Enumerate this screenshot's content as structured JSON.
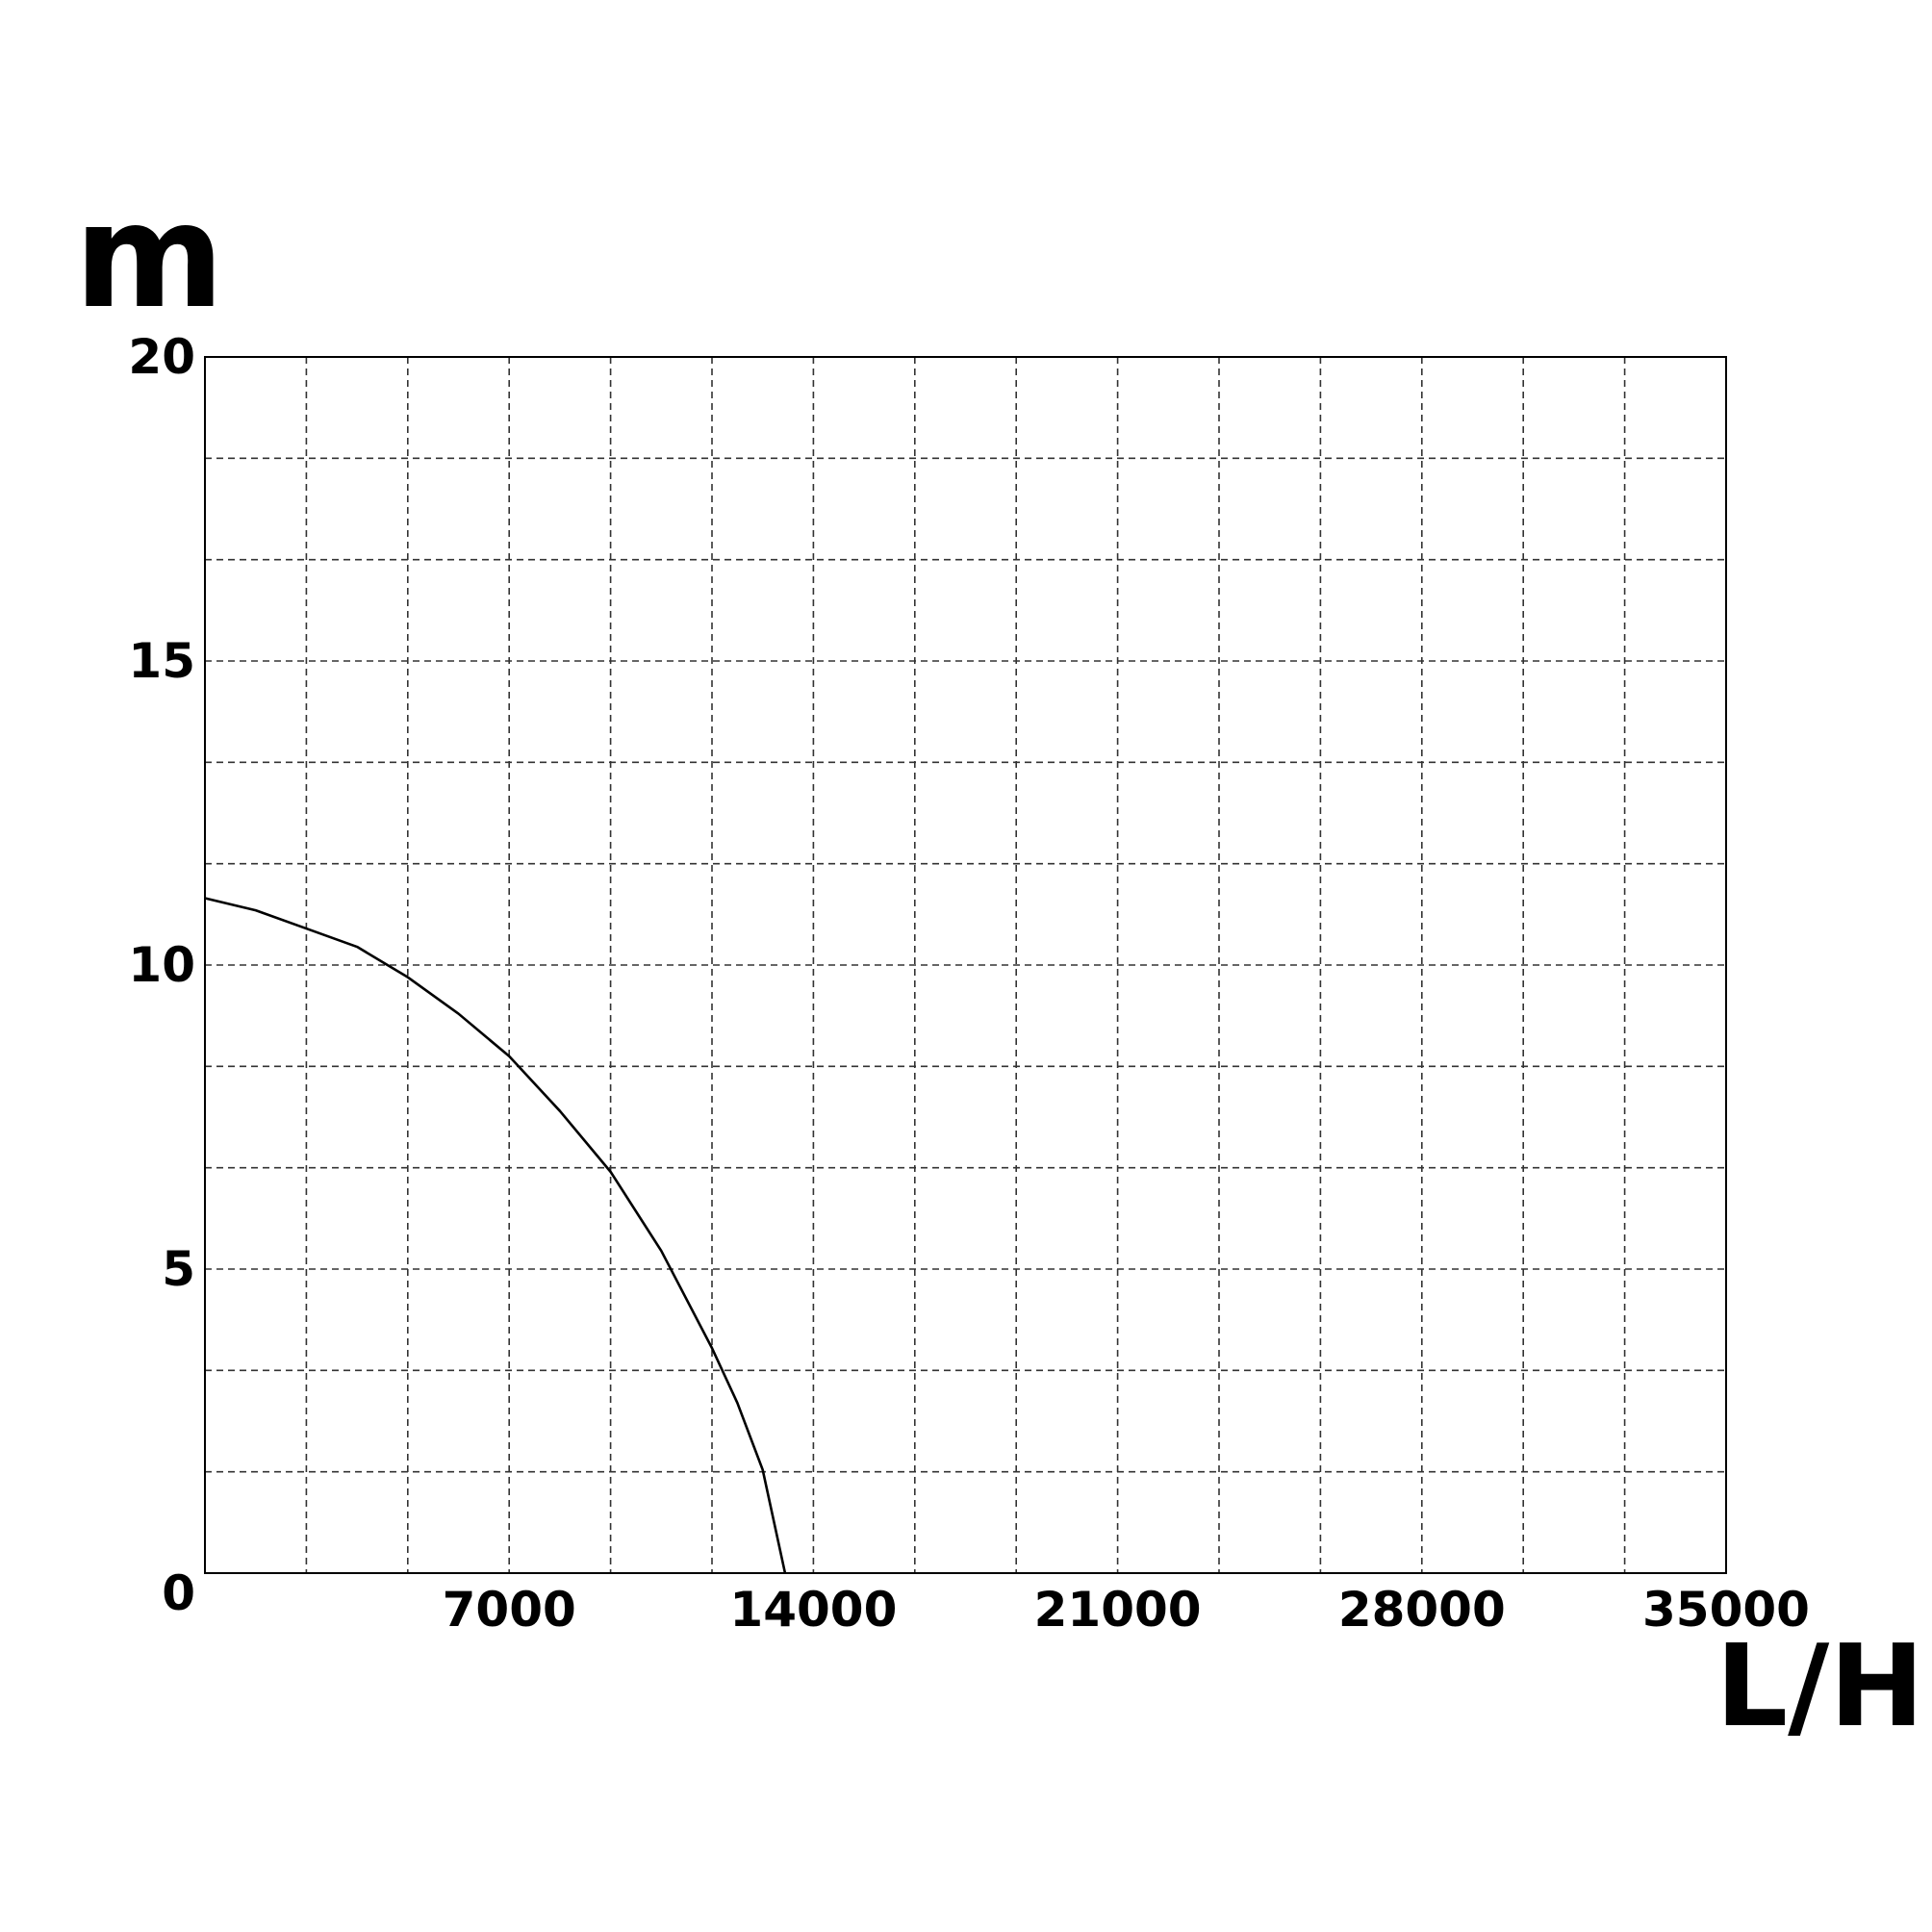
{
  "chart_data": {
    "type": "line",
    "x_label": "L/H",
    "y_label": "m",
    "x": [
      0,
      1167,
      2333,
      3500,
      4667,
      5833,
      7000,
      8167,
      9333,
      10500,
      11667,
      12250,
      12833,
      13348
    ],
    "series": [
      {
        "color": "#000000",
        "values": [
          11.1,
          10.9,
          10.6,
          10.3,
          9.8,
          9.2,
          8.5,
          7.6,
          6.6,
          5.3,
          3.7,
          2.8,
          1.7,
          0
        ]
      }
    ],
    "xlim": [
      0,
      35000
    ],
    "xticks": [
      7000,
      14000,
      21000,
      28000,
      35000
    ],
    "ylim": [
      0,
      20
    ],
    "yticks": [
      0,
      5,
      10,
      15,
      20
    ],
    "grid": true
  }
}
